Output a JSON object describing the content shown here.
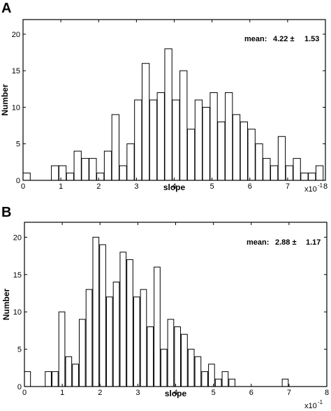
{
  "chart_data": [
    {
      "type": "bar",
      "panel": "A",
      "xlabel": "slope",
      "ylabel": "Number",
      "xscale": "x10^-1",
      "annotation": "mean: 4.22 ± 1.53",
      "xlim": [
        0,
        8
      ],
      "ylim": [
        0,
        22
      ],
      "xticks": [
        0,
        1,
        2,
        3,
        4,
        5,
        6,
        7,
        8
      ],
      "yticks": [
        0,
        5,
        10,
        15,
        20
      ],
      "bin_width": 0.19,
      "x": [
        0.0,
        0.75,
        0.95,
        1.15,
        1.35,
        1.55,
        1.75,
        1.95,
        2.15,
        2.35,
        2.55,
        2.75,
        2.95,
        3.15,
        3.35,
        3.55,
        3.75,
        3.95,
        4.15,
        4.35,
        4.55,
        4.75,
        4.95,
        5.15,
        5.35,
        5.55,
        5.75,
        5.95,
        6.15,
        6.35,
        6.55,
        6.75,
        6.95,
        7.15,
        7.35,
        7.55,
        7.75
      ],
      "values": [
        1,
        2,
        2,
        1,
        4,
        3,
        3,
        1,
        4,
        9,
        2,
        5,
        11,
        16,
        11,
        12,
        18,
        11,
        15,
        7,
        11,
        10,
        12,
        8,
        12,
        9,
        8,
        7,
        5,
        3,
        2,
        6,
        2,
        3,
        1,
        1,
        2
      ]
    },
    {
      "type": "bar",
      "panel": "B",
      "xlabel": "slope",
      "ylabel": "Number",
      "xscale": "x10^-1",
      "annotation": "mean: 2.88 ± 1.17",
      "xlim": [
        0,
        8
      ],
      "ylim": [
        0,
        22
      ],
      "xticks": [
        0,
        1,
        2,
        3,
        4,
        5,
        6,
        7,
        8
      ],
      "yticks": [
        0,
        5,
        10,
        15,
        20
      ],
      "bin_width": 0.16,
      "x": [
        0.0,
        0.55,
        0.73,
        0.91,
        1.09,
        1.27,
        1.45,
        1.63,
        1.81,
        1.99,
        2.17,
        2.35,
        2.53,
        2.71,
        2.89,
        3.07,
        3.25,
        3.43,
        3.61,
        3.79,
        3.97,
        4.15,
        4.33,
        4.51,
        4.69,
        4.87,
        5.05,
        5.23,
        5.41,
        6.82
      ],
      "values": [
        2,
        2,
        2,
        10,
        4,
        3,
        9,
        13,
        20,
        19,
        12,
        14,
        18,
        17,
        12,
        13,
        8,
        16,
        5,
        9,
        8,
        7,
        5,
        4,
        2,
        3,
        1,
        2,
        1,
        1
      ]
    }
  ],
  "labels": {
    "panel_a": "A",
    "panel_b": "B",
    "mean_a_label": "mean:",
    "mean_a_value": "4.22 ±",
    "mean_a_sd": "1.53",
    "mean_b_label": "mean:",
    "mean_b_value": "2.88 ±",
    "mean_b_sd": "1.17",
    "scale_base": "x10",
    "scale_exp": "-1"
  }
}
